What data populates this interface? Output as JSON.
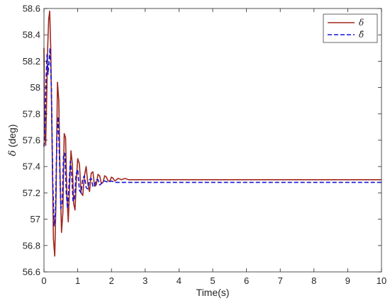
{
  "chart_data": {
    "type": "line",
    "xlabel": "Time(s)",
    "ylabel_symbol": "δ",
    "ylabel_unit": " (deg)",
    "xlim": [
      0,
      10
    ],
    "ylim": [
      56.6,
      58.6
    ],
    "xticks": [
      0,
      1,
      2,
      3,
      4,
      5,
      6,
      7,
      8,
      9,
      10
    ],
    "yticks": [
      56.6,
      56.8,
      57,
      57.2,
      57.4,
      57.6,
      57.8,
      58,
      58.2,
      58.4,
      58.6
    ],
    "ytick_labels": [
      "56.6",
      "56.8",
      "57",
      "57.2",
      "57.4",
      "57.6",
      "57.8",
      "58",
      "58.2",
      "58.4",
      "58.6"
    ],
    "grid": false,
    "legend_position": "top-right",
    "series": [
      {
        "name": "δ",
        "color": "#a0281e",
        "style": "solid",
        "x": [
          0,
          0.02,
          0.05,
          0.08,
          0.11,
          0.14,
          0.17,
          0.2,
          0.24,
          0.28,
          0.32,
          0.36,
          0.4,
          0.44,
          0.48,
          0.52,
          0.56,
          0.6,
          0.64,
          0.68,
          0.72,
          0.76,
          0.8,
          0.84,
          0.88,
          0.92,
          0.96,
          1.0,
          1.05,
          1.1,
          1.15,
          1.2,
          1.25,
          1.3,
          1.35,
          1.4,
          1.45,
          1.5,
          1.55,
          1.6,
          1.65,
          1.7,
          1.75,
          1.8,
          1.85,
          1.9,
          1.95,
          2.0,
          2.05,
          2.1,
          2.2,
          2.3,
          2.4,
          2.5,
          2.6,
          2.8,
          3.0,
          4.0,
          5.0,
          6.0,
          7.0,
          8.0,
          9.0,
          10.0
        ],
        "y": [
          58.3,
          57.68,
          57.56,
          57.92,
          58.3,
          58.52,
          58.58,
          58.3,
          57.6,
          56.85,
          56.72,
          57.2,
          58.04,
          57.9,
          57.3,
          56.9,
          57.05,
          57.65,
          57.62,
          57.18,
          56.98,
          57.25,
          57.52,
          57.42,
          57.12,
          57.07,
          57.3,
          57.46,
          57.42,
          57.2,
          57.18,
          57.33,
          57.4,
          57.27,
          57.21,
          57.35,
          57.36,
          57.25,
          57.26,
          57.34,
          57.33,
          57.27,
          57.28,
          57.33,
          57.32,
          57.29,
          57.29,
          57.32,
          57.31,
          57.29,
          57.31,
          57.3,
          57.31,
          57.3,
          57.3,
          57.3,
          57.3,
          57.3,
          57.3,
          57.3,
          57.3,
          57.3,
          57.3,
          57.3
        ]
      },
      {
        "name": "δ̂",
        "color": "#1414d4",
        "style": "dashed",
        "x": [
          0,
          0.03,
          0.06,
          0.09,
          0.12,
          0.15,
          0.18,
          0.22,
          0.26,
          0.3,
          0.34,
          0.38,
          0.42,
          0.46,
          0.5,
          0.54,
          0.58,
          0.62,
          0.66,
          0.7,
          0.74,
          0.78,
          0.82,
          0.86,
          0.9,
          0.95,
          1.0,
          1.05,
          1.1,
          1.15,
          1.2,
          1.25,
          1.3,
          1.35,
          1.4,
          1.45,
          1.5,
          1.55,
          1.6,
          1.65,
          1.7,
          1.75,
          1.8,
          1.9,
          2.0,
          2.1,
          2.2,
          2.4,
          2.6,
          3.0,
          4.0,
          5.0,
          6.0,
          7.0,
          8.0,
          9.0,
          10.0
        ],
        "y": [
          57.55,
          57.7,
          58.05,
          58.25,
          58.1,
          58.2,
          58.3,
          58.0,
          57.3,
          56.95,
          57.05,
          57.6,
          57.78,
          57.45,
          57.08,
          57.12,
          57.5,
          57.5,
          57.2,
          57.08,
          57.26,
          57.44,
          57.35,
          57.14,
          57.14,
          57.34,
          57.38,
          57.22,
          57.2,
          57.31,
          57.33,
          57.24,
          57.23,
          57.3,
          57.31,
          57.25,
          57.25,
          57.3,
          57.3,
          57.26,
          57.27,
          57.29,
          57.29,
          57.28,
          57.29,
          57.28,
          57.28,
          57.28,
          57.28,
          57.28,
          57.28,
          57.28,
          57.28,
          57.28,
          57.28,
          57.28,
          57.28
        ]
      }
    ]
  }
}
